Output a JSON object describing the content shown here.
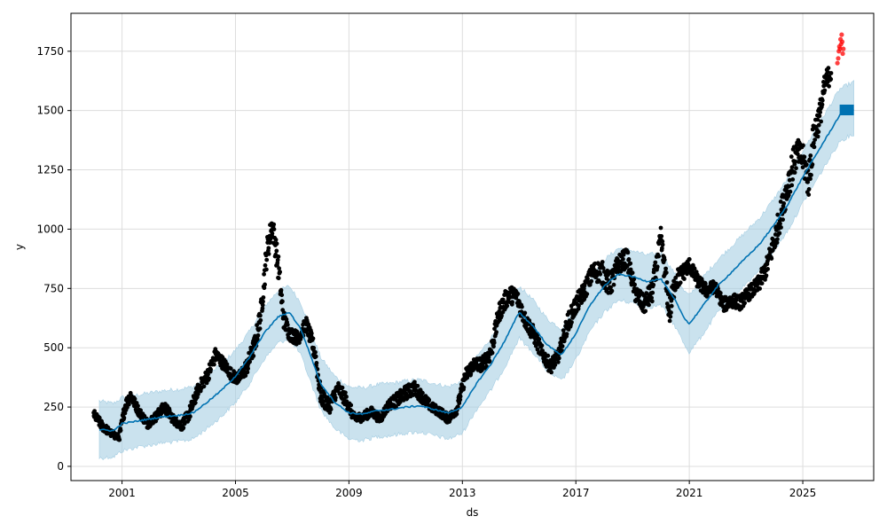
{
  "chart_data": {
    "type": "scatter",
    "title": "",
    "xlabel": "ds",
    "ylabel": "y",
    "xlim": [
      1999.2,
      2027.5
    ],
    "ylim": [
      -60,
      1910
    ],
    "grid": true,
    "legend": "none",
    "x_ticks": [
      2001,
      2005,
      2009,
      2013,
      2017,
      2021,
      2025
    ],
    "x_tick_labels": [
      "2001",
      "2005",
      "2009",
      "2013",
      "2017",
      "2021",
      "2025"
    ],
    "y_ticks": [
      0,
      250,
      500,
      750,
      1000,
      1250,
      1500,
      1750
    ],
    "y_tick_labels": [
      "0",
      "250",
      "500",
      "750",
      "1000",
      "1250",
      "1500",
      "1750"
    ],
    "colors": {
      "observed": "#000000",
      "trend": "#0072B2",
      "interval": "#A6CEE3",
      "recent": "#FF0000",
      "grid": "#DDDDDD"
    },
    "forecast": {
      "x": [
        2000.2,
        2000.7,
        2001.0,
        2001.5,
        2002.0,
        2002.5,
        2003.0,
        2003.5,
        2004.0,
        2004.5,
        2005.0,
        2005.5,
        2006.0,
        2006.5,
        2006.9,
        2007.3,
        2007.7,
        2008.0,
        2008.5,
        2009.0,
        2009.5,
        2010.0,
        2010.5,
        2011.0,
        2011.5,
        2012.0,
        2012.5,
        2013.0,
        2013.5,
        2014.0,
        2014.5,
        2015.0,
        2015.5,
        2016.0,
        2016.5,
        2017.0,
        2017.5,
        2018.0,
        2018.5,
        2019.0,
        2019.5,
        2020.0,
        2020.5,
        2020.8,
        2021.0,
        2021.5,
        2022.0,
        2022.5,
        2023.0,
        2023.5,
        2024.0,
        2024.5,
        2025.0,
        2025.5,
        2026.0,
        2026.3,
        2026.6,
        2026.8
      ],
      "yhat": [
        155,
        150,
        180,
        190,
        200,
        210,
        215,
        225,
        270,
        320,
        380,
        460,
        560,
        630,
        650,
        580,
        450,
        350,
        270,
        225,
        220,
        235,
        240,
        250,
        255,
        240,
        225,
        250,
        350,
        430,
        530,
        650,
        590,
        510,
        470,
        560,
        680,
        760,
        810,
        800,
        780,
        790,
        700,
        630,
        600,
        680,
        760,
        820,
        880,
        940,
        1020,
        1110,
        1220,
        1320,
        1420,
        1480,
        1500,
        1500
      ],
      "yhat_lower": [
        35,
        40,
        65,
        80,
        90,
        100,
        105,
        115,
        160,
        210,
        270,
        350,
        450,
        520,
        540,
        470,
        340,
        240,
        160,
        115,
        110,
        125,
        130,
        140,
        145,
        130,
        115,
        140,
        240,
        320,
        420,
        540,
        480,
        400,
        360,
        450,
        570,
        650,
        700,
        690,
        670,
        680,
        590,
        520,
        480,
        560,
        650,
        710,
        770,
        830,
        910,
        1000,
        1110,
        1210,
        1310,
        1370,
        1390,
        1400
      ],
      "yhat_upper": [
        275,
        265,
        290,
        300,
        310,
        320,
        325,
        335,
        380,
        430,
        490,
        570,
        670,
        740,
        760,
        690,
        560,
        460,
        380,
        335,
        330,
        345,
        350,
        360,
        365,
        350,
        335,
        360,
        460,
        540,
        640,
        760,
        700,
        620,
        580,
        670,
        790,
        870,
        920,
        910,
        890,
        900,
        810,
        740,
        720,
        800,
        870,
        930,
        990,
        1050,
        1130,
        1220,
        1330,
        1430,
        1530,
        1590,
        1610,
        1620
      ]
    },
    "observed": {
      "x": [
        2000.0,
        2000.3,
        2000.6,
        2000.9,
        2001.1,
        2001.3,
        2001.6,
        2001.9,
        2002.2,
        2002.5,
        2002.8,
        2003.1,
        2003.4,
        2003.7,
        2004.0,
        2004.3,
        2004.6,
        2004.9,
        2005.1,
        2005.4,
        2005.7,
        2005.9,
        2006.1,
        2006.3,
        2006.5,
        2006.7,
        2006.9,
        2007.2,
        2007.5,
        2007.8,
        2008.0,
        2008.3,
        2008.6,
        2008.9,
        2009.2,
        2009.5,
        2009.8,
        2010.1,
        2010.4,
        2010.7,
        2011.0,
        2011.3,
        2011.6,
        2011.9,
        2012.2,
        2012.5,
        2012.8,
        2013.1,
        2013.4,
        2013.7,
        2014.0,
        2014.3,
        2014.6,
        2014.9,
        2015.2,
        2015.5,
        2015.8,
        2016.1,
        2016.4,
        2016.7,
        2017.0,
        2017.3,
        2017.6,
        2017.9,
        2018.2,
        2018.5,
        2018.8,
        2019.1,
        2019.4,
        2019.7,
        2020.0,
        2020.3,
        2020.5,
        2020.8,
        2021.0,
        2021.3,
        2021.6,
        2021.9,
        2022.2,
        2022.5,
        2022.8,
        2023.1,
        2023.4,
        2023.7,
        2024.0,
        2024.2,
        2024.4,
        2024.6,
        2024.8,
        2025.0,
        2025.2,
        2025.4,
        2025.6,
        2025.8,
        2026.0
      ],
      "y": [
        220,
        170,
        140,
        120,
        250,
        300,
        230,
        180,
        210,
        250,
        200,
        170,
        230,
        330,
        380,
        470,
        430,
        380,
        370,
        420,
        520,
        650,
        900,
        1020,
        850,
        620,
        560,
        540,
        600,
        480,
        300,
        250,
        330,
        280,
        200,
        210,
        230,
        200,
        260,
        280,
        310,
        330,
        290,
        250,
        230,
        200,
        240,
        380,
        430,
        430,
        480,
        650,
        720,
        720,
        620,
        560,
        480,
        420,
        470,
        600,
        680,
        740,
        820,
        820,
        760,
        850,
        880,
        730,
        680,
        740,
        960,
        650,
        780,
        820,
        850,
        780,
        740,
        760,
        680,
        700,
        690,
        730,
        760,
        830,
        950,
        1050,
        1150,
        1250,
        1320,
        1300,
        1200,
        1400,
        1480,
        1620,
        1660
      ],
      "spread": [
        40,
        40,
        30,
        30,
        60,
        50,
        40,
        40,
        40,
        50,
        40,
        40,
        60,
        50,
        60,
        60,
        50,
        50,
        50,
        70,
        80,
        100,
        120,
        100,
        120,
        80,
        60,
        60,
        60,
        80,
        80,
        60,
        60,
        60,
        40,
        40,
        40,
        40,
        40,
        60,
        60,
        60,
        50,
        40,
        40,
        40,
        40,
        60,
        60,
        60,
        80,
        80,
        80,
        70,
        70,
        70,
        60,
        60,
        60,
        80,
        80,
        80,
        80,
        100,
        100,
        90,
        80,
        80,
        80,
        100,
        100,
        120,
        90,
        70,
        60,
        60,
        60,
        50,
        60,
        60,
        60,
        60,
        70,
        80,
        100,
        120,
        120,
        150,
        120,
        120,
        150,
        150,
        120,
        100,
        80
      ]
    },
    "recent": {
      "x": [
        2026.22,
        2026.25,
        2026.27,
        2026.29,
        2026.31,
        2026.33,
        2026.35,
        2026.37,
        2026.39,
        2026.41,
        2026.43
      ],
      "y": [
        1700,
        1720,
        1750,
        1770,
        1760,
        1800,
        1780,
        1820,
        1790,
        1740,
        1760
      ]
    }
  }
}
